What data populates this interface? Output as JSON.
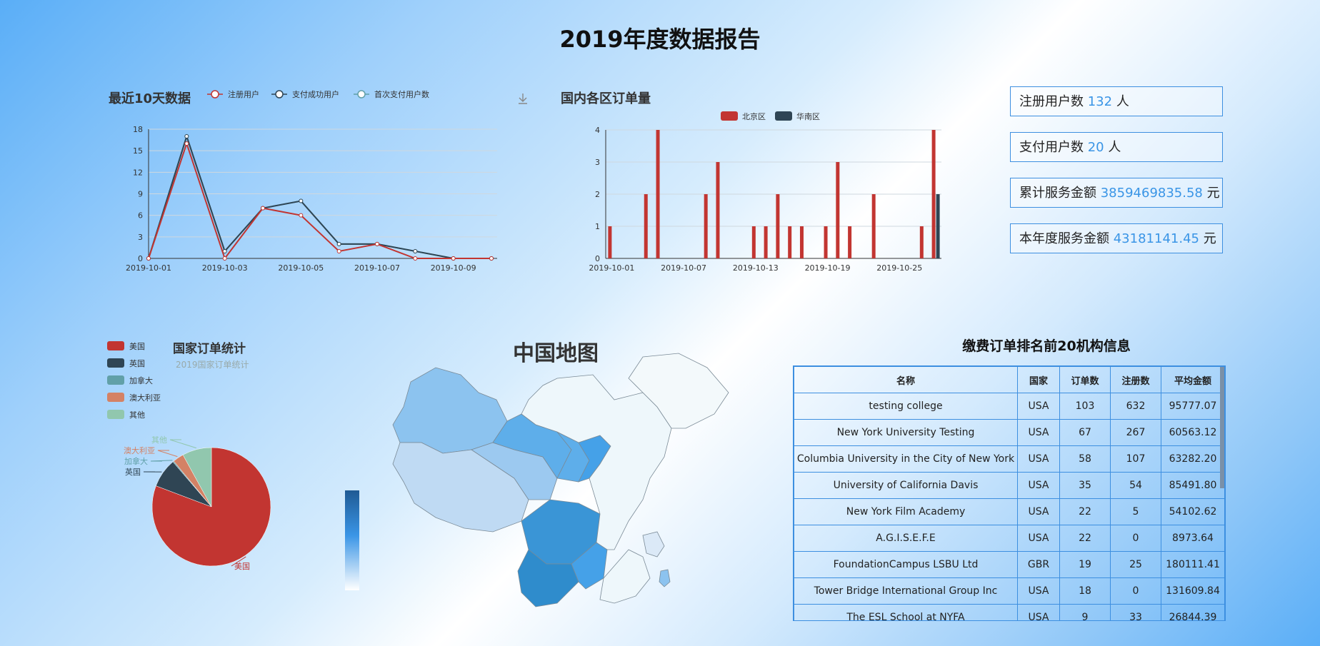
{
  "page": {
    "title": "2019年度数据报告"
  },
  "line_chart": {
    "title": "最近10天数据",
    "legend": [
      "注册用户",
      "支付成功用户",
      "首次支付用户数"
    ],
    "download_icon": "download-icon"
  },
  "bar_chart": {
    "title": "国内各区订单量",
    "legend": [
      "北京区",
      "华南区"
    ]
  },
  "stats": [
    {
      "label": "注册用户数",
      "value": "132",
      "unit": "人"
    },
    {
      "label": "支付用户数",
      "value": "20",
      "unit": "人"
    },
    {
      "label": "累计服务金额",
      "value": "3859469835.58",
      "unit": "元"
    },
    {
      "label": "本年度服务金额",
      "value": "43181141.45",
      "unit": "元"
    }
  ],
  "pie": {
    "title": "国家订单统计",
    "subtitle": "2019国家订单统计"
  },
  "map": {
    "title": "中国地图"
  },
  "table": {
    "title": "缴费订单排名前20机构信息",
    "headers": [
      "名称",
      "国家",
      "订单数",
      "注册数",
      "平均金额"
    ],
    "rows": [
      [
        "testing college",
        "USA",
        "103",
        "632",
        "95777.07"
      ],
      [
        "New York University Testing",
        "USA",
        "67",
        "267",
        "60563.12"
      ],
      [
        "Columbia University in the City of New York",
        "USA",
        "58",
        "107",
        "63282.20"
      ],
      [
        "University of California Davis",
        "USA",
        "35",
        "54",
        "85491.80"
      ],
      [
        "New York Film Academy",
        "USA",
        "22",
        "5",
        "54102.62"
      ],
      [
        "A.G.I.S.E.F.E",
        "USA",
        "22",
        "0",
        "8973.64"
      ],
      [
        "FoundationCampus LSBU Ltd",
        "GBR",
        "19",
        "25",
        "180111.41"
      ],
      [
        "Tower Bridge International Group Inc",
        "USA",
        "18",
        "0",
        "131609.84"
      ],
      [
        "The ESL School at NYFA",
        "USA",
        "9",
        "33",
        "26844.39"
      ]
    ]
  },
  "colors": {
    "red": "#c23531",
    "dark": "#2f4554",
    "teal": "#61a0a8",
    "orange": "#d48265",
    "green": "#91c7ae",
    "accent": "#3a95e6"
  },
  "chart_data": [
    {
      "type": "line",
      "title": "最近10天数据",
      "x": [
        "2019-10-01",
        "2019-10-02",
        "2019-10-03",
        "2019-10-04",
        "2019-10-05",
        "2019-10-06",
        "2019-10-07",
        "2019-10-08",
        "2019-10-09",
        "2019-10-10"
      ],
      "x_tick_labels": [
        "2019-10-01",
        "2019-10-03",
        "2019-10-05",
        "2019-10-07",
        "2019-10-09"
      ],
      "y_ticks": [
        "0",
        "3",
        "6",
        "9",
        "12",
        "15",
        "18"
      ],
      "ylim": [
        0,
        18
      ],
      "grid": true,
      "legend_position": "top",
      "series": [
        {
          "name": "注册用户",
          "color": "#c23531",
          "values": [
            0,
            16,
            0,
            7,
            6,
            1,
            2,
            0,
            0,
            0
          ]
        },
        {
          "name": "支付成功用户",
          "color": "#2f4554",
          "values": [
            0,
            17,
            1,
            7,
            8,
            2,
            2,
            1,
            0,
            0
          ]
        },
        {
          "name": "首次支付用户数",
          "color": "#61a0a8",
          "values": [
            0,
            17,
            1,
            7,
            8,
            2,
            2,
            1,
            0,
            0
          ]
        }
      ]
    },
    {
      "type": "bar",
      "title": "国内各区订单量",
      "x_tick_labels": [
        "2019-10-01",
        "2019-10-07",
        "2019-10-13",
        "2019-10-19",
        "2019-10-25"
      ],
      "y_ticks": [
        "0",
        "1",
        "2",
        "3",
        "4"
      ],
      "ylim": [
        0,
        4
      ],
      "grid": true,
      "legend_position": "top",
      "series": [
        {
          "name": "北京区",
          "color": "#c23531",
          "values": [
            1,
            0,
            0,
            2,
            4,
            0,
            0,
            0,
            2,
            3,
            0,
            0,
            1,
            1,
            2,
            1,
            1,
            0,
            1,
            3,
            1,
            0,
            2,
            0,
            0,
            0,
            1,
            4
          ]
        },
        {
          "name": "华南区",
          "color": "#2f4554",
          "values": [
            0,
            0,
            0,
            0,
            0,
            0,
            0,
            0,
            0,
            0,
            0,
            0,
            0,
            0,
            0,
            0,
            0,
            0,
            0,
            0,
            0,
            0,
            0,
            0,
            0,
            0,
            0,
            2
          ]
        }
      ]
    },
    {
      "type": "pie",
      "title": "国家订单统计",
      "subtitle": "2019国家订单统计",
      "legend_position": "top-left",
      "slices": [
        {
          "name": "美国",
          "value": 81,
          "color": "#c23531"
        },
        {
          "name": "英国",
          "value": 8,
          "color": "#2f4554"
        },
        {
          "name": "加拿大",
          "value": 0.3,
          "color": "#61a0a8"
        },
        {
          "name": "澳大利亚",
          "value": 3,
          "color": "#d48265"
        },
        {
          "name": "其他",
          "value": 8,
          "color": "#91c7ae"
        }
      ]
    }
  ]
}
